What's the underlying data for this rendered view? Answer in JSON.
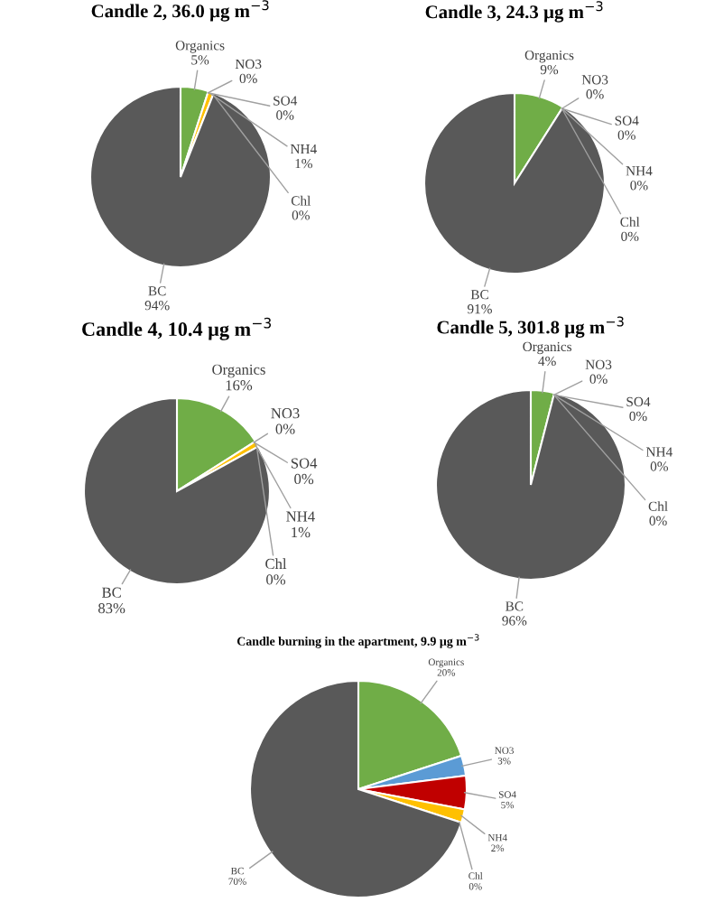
{
  "chart_data": [
    {
      "type": "pie",
      "title": "Candle 2, 36.0 µg m$^{−3}$",
      "categories": [
        "Organics",
        "NO3",
        "SO4",
        "NH4",
        "Chl",
        "BC"
      ],
      "values": [
        5,
        0,
        0,
        1,
        0,
        94
      ],
      "colors": [
        "#70ad47",
        "#5b9bd5",
        "#c00000",
        "#ffc000",
        "#a5a5a5",
        "#595959"
      ],
      "value_labels": [
        "5%",
        "0%",
        "0%",
        "1%",
        "0%",
        "94%"
      ]
    },
    {
      "type": "pie",
      "title": "Candle 3, 24.3 µg m$^{−3}$",
      "categories": [
        "Organics",
        "NO3",
        "SO4",
        "NH4",
        "Chl",
        "BC"
      ],
      "values": [
        9,
        0,
        0,
        0,
        0,
        91
      ],
      "colors": [
        "#70ad47",
        "#5b9bd5",
        "#c00000",
        "#ffc000",
        "#a5a5a5",
        "#595959"
      ],
      "value_labels": [
        "9%",
        "0%",
        "0%",
        "0%",
        "0%",
        "91%"
      ]
    },
    {
      "type": "pie",
      "title": "Candle 4, 10.4 µg m$^{−3}$",
      "categories": [
        "Organics",
        "NO3",
        "SO4",
        "NH4",
        "Chl",
        "BC"
      ],
      "values": [
        16,
        0,
        0,
        1,
        0,
        83
      ],
      "colors": [
        "#70ad47",
        "#5b9bd5",
        "#c00000",
        "#ffc000",
        "#a5a5a5",
        "#595959"
      ],
      "value_labels": [
        "16%",
        "0%",
        "0%",
        "1%",
        "0%",
        "83%"
      ]
    },
    {
      "type": "pie",
      "title": "Candle 5, 301.8 µg m$^{−3}$",
      "categories": [
        "Organics",
        "NO3",
        "SO4",
        "NH4",
        "Chl",
        "BC"
      ],
      "values": [
        4,
        0,
        0,
        0,
        0,
        96
      ],
      "colors": [
        "#70ad47",
        "#5b9bd5",
        "#c00000",
        "#ffc000",
        "#a5a5a5",
        "#595959"
      ],
      "value_labels": [
        "4%",
        "0%",
        "0%",
        "0%",
        "0%",
        "96%"
      ]
    },
    {
      "type": "pie",
      "title": "Candle burning in the apartment, 9.9 µg m$^{−3}$",
      "categories": [
        "Organics",
        "NO3",
        "SO4",
        "NH4",
        "Chl",
        "BC"
      ],
      "values": [
        20,
        3,
        5,
        2,
        0,
        70
      ],
      "colors": [
        "#70ad47",
        "#5b9bd5",
        "#c00000",
        "#ffc000",
        "#a5a5a5",
        "#595959"
      ],
      "value_labels": [
        "20%",
        "3%",
        "5%",
        "2%",
        "0%",
        "70%"
      ]
    }
  ]
}
